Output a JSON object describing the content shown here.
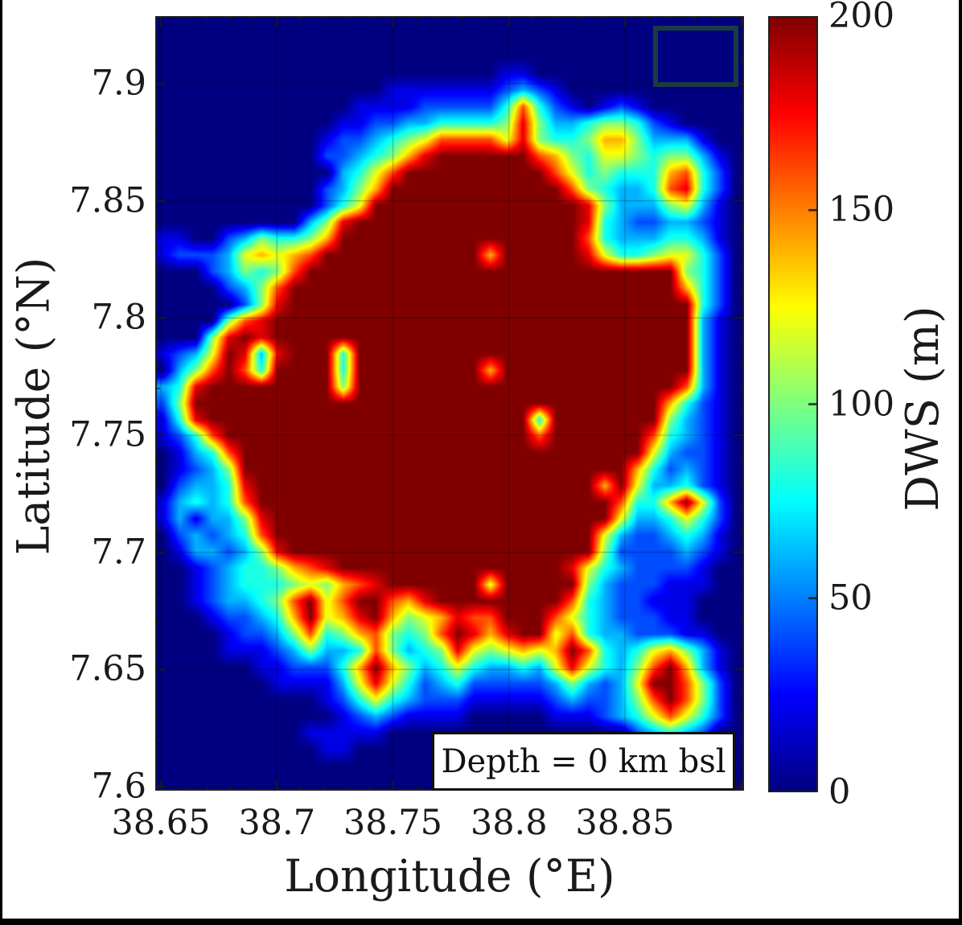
{
  "figure": {
    "background_color": "#ffffff",
    "frame_color": "#000000",
    "text_color": "#1a1a1a"
  },
  "axes": {
    "xlabel": "Longitude (°E)",
    "ylabel": "Latitude (°N)",
    "xlim": [
      38.6476,
      38.9013
    ],
    "ylim": [
      7.5983,
      7.9288
    ],
    "x_ticks": [
      {
        "v": 38.65,
        "label": "38.65"
      },
      {
        "v": 38.7,
        "label": "38.7"
      },
      {
        "v": 38.75,
        "label": "38.75"
      },
      {
        "v": 38.8,
        "label": "38.8"
      },
      {
        "v": 38.85,
        "label": "38.85"
      }
    ],
    "y_ticks": [
      {
        "v": 7.9,
        "label": "7.9"
      },
      {
        "v": 7.85,
        "label": "7.85"
      },
      {
        "v": 7.8,
        "label": "7.8"
      },
      {
        "v": 7.75,
        "label": "7.75"
      },
      {
        "v": 7.7,
        "label": "7.7"
      },
      {
        "v": 7.65,
        "label": "7.65"
      },
      {
        "v": 7.6,
        "label": "7.6"
      }
    ],
    "minor_tick_step": 0.01,
    "grid": true,
    "grid_color": "rgba(0,0,0,0.28)"
  },
  "annotation": {
    "text": "Depth = 0 km bsl"
  },
  "colorbar": {
    "label": "DWS (m)",
    "min": 0,
    "max": 200,
    "ticks": [
      {
        "v": 0,
        "label": "0"
      },
      {
        "v": 50,
        "label": "50"
      },
      {
        "v": 100,
        "label": "100"
      },
      {
        "v": 150,
        "label": "150"
      },
      {
        "v": 200,
        "label": "200"
      }
    ],
    "colormap": "jet"
  },
  "inset_rectangle": {
    "lon": [
      38.862,
      38.899
    ],
    "lat": [
      7.899,
      7.925
    ],
    "edge_color": "#1c3a44"
  },
  "chart_data": {
    "type": "heatmap",
    "title": "",
    "xlabel": "Longitude (°E)",
    "ylabel": "Latitude (°N)",
    "value_label": "DWS (m)",
    "xlim": [
      38.6476,
      38.9013
    ],
    "ylim": [
      7.5983,
      7.9288
    ],
    "value_range": [
      0,
      200
    ],
    "colormap": "jet",
    "grid_cols": 36,
    "grid_rows": 47,
    "value_scale_per_char": 20,
    "encoding_note": "each char 0-9,A = DWS value = char*20 m (A=200, saturated); rows top (lat 7.93) to bottom (lat 7.60), cols left (lon 38.65) to right (lon 38.90)",
    "values_encoded": [
      "000000000000000000000000000000000000",
      "000000000000000000000000000000000000",
      "000000000000000000000000000000000000",
      "000000000000000000000110000000000000",
      "000000000000001111111232100000000000",
      "000000000000111122222484210121000000",
      "000000000001122334444595334554210000",
      "000000000012234568888695445775333100",
      "00000000002234579AAAAAA8754665455310",
      "000000000003468AAAAAAAAA864544478420",
      "00000000002357AAAAAAAAAAA85433489420",
      "0000000000246AAAAAAAAAAAAA9533356310",
      "000000000359AAAAAAAAAAAAAA9432233210",
      "11002354457AAAAAAAAAAAAAAA8433344310",
      "1222367678AAAAAAAAAA7AAAAA9644566420",
      "000235458AAAAAAAAAAAAAAAAAAAAAAA5420",
      "00002358AAAAAAAAAAAAAAAAAAAAAAAA7420",
      "00000259AAAAAAAAAAAAAAAAAAAAAAAAA420",
      "0000589AAAAAAAAAAAAAAAAAAAAAAAAAA310",
      "00059A9AAAAAAAAAAAAAAAAAAAAAAAAAA310",
      "1236A939AAA4AAAAAAAAAAAAAAAAAAAAA310",
      "0358A84AAAA4AAAAAAAA7AAAAAAAAAAAA310",
      "349AAAAAAAA5AAAAAAAAAAAAAAAAAAAA8310",
      "25AAAAAAAAAAAAAAAAAAAAAAAAAAAAA74210",
      "149AAAAAAAAAAAAAAAAAAAA4AAAAAAA53210",
      "1248AAAAAAAAAAAAAAAAAAA8AAAAAA843210",
      "01348AAAAAAAAAAAAAAAAAAAAAAAAA632210",
      "01235AAAAAAAAAAAAAAAAAAAAAAAA7423210",
      "023349AAAAAAAAAAAAAAAAAAAAA7A6334210",
      "134348AAAAAAAAAAAAAAAAAAAAAA8447A620",
      "1313359AAAAAAAAAAAAAAAAAAAAA63346420",
      "0232348AAAAAAAAAAAAAAAAAAAA632234310",
      "01332359AAAAAAAAAAAAAAAAAAA522223210",
      "00123445789AAAAAAAAAAAAAA96432222100",
      "00123444565789AAAAAA6AAAAA5322211100",
      "001233458A68AA879AAAAAAAA84322111000",
      "000122347A679A7567988AAA864322211000",
      "000012235845785458A979AA684332221100",
      "0000111235334853459656767A8434675310",
      "0000001122247A75346433436964358A7310",
      "000000011113696423422222353236AA8520",
      "0000000000124643222111112322358A8520",
      "000000000001232111100000111234686420",
      "000000000111110000000000000002343200",
      "000000000011000000000000000001221000",
      "000000000000000000000000000000100000",
      "000000000000000000000000000000000000"
    ]
  }
}
